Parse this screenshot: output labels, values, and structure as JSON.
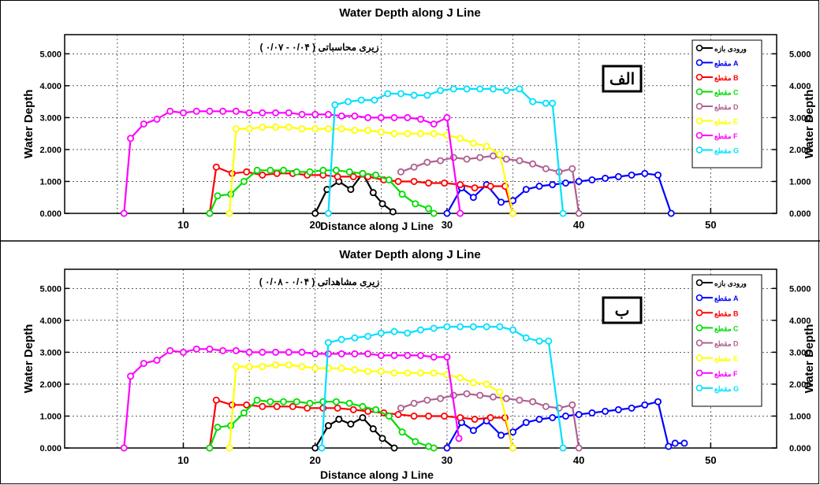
{
  "chart_data": [
    {
      "type": "line",
      "title": "Water Depth along J Line",
      "subtitle": "زیری محاسباتی ( ۰/۰۴ - ۰/۰۷ )",
      "panel_label": "الف",
      "xlabel": "Distance along J Line",
      "ylabel": "Water Depth",
      "ylabel_right": "Water Depth",
      "xlim": [
        1,
        55
      ],
      "ylim": [
        0,
        5.6
      ],
      "xticks": [
        10,
        20,
        30,
        40,
        50
      ],
      "yticks": [
        "0.000",
        "1.000",
        "2.000",
        "3.000",
        "4.000",
        "5.000"
      ],
      "grid": true,
      "legend_position": "top-right",
      "series": [
        {
          "name": "ورودی بازه",
          "color": "#000000",
          "x": [
            20,
            20.9,
            21.8,
            22.7,
            23.6,
            24.4,
            25.1,
            25.9
          ],
          "y": [
            0.0,
            0.75,
            1.0,
            0.75,
            1.25,
            0.65,
            0.3,
            0.05
          ]
        },
        {
          "name": "مقطع A",
          "color": "#0000ff",
          "x": [
            30,
            31.1,
            32.0,
            33.0,
            34.1,
            35.0,
            36.0,
            37.0,
            38.0,
            39.0,
            40.0,
            41.0,
            42.0,
            43.0,
            44.0,
            45.0,
            46.0,
            47.0
          ],
          "y": [
            0.0,
            0.8,
            0.5,
            0.9,
            0.35,
            0.4,
            0.75,
            0.85,
            0.9,
            0.95,
            1.0,
            1.05,
            1.1,
            1.15,
            1.2,
            1.25,
            1.2,
            0.0
          ]
        },
        {
          "name": "مقطع B",
          "color": "#ff0000",
          "x": [
            12,
            12.5,
            13.7,
            14.8,
            16.0,
            17.1,
            18.3,
            19.4,
            20.6,
            21.7,
            22.9,
            24.0,
            25.2,
            26.3,
            27.5,
            28.6,
            29.8,
            31.0,
            32.1,
            33.3,
            34.4,
            35.0
          ],
          "y": [
            0.0,
            1.45,
            1.25,
            1.3,
            1.2,
            1.25,
            1.25,
            1.2,
            1.2,
            1.15,
            1.15,
            1.15,
            1.05,
            1.0,
            1.0,
            0.95,
            0.95,
            0.9,
            0.8,
            0.85,
            0.85,
            0.0
          ]
        },
        {
          "name": "مقطع C",
          "color": "#00dd00",
          "x": [
            12,
            12.6,
            13.6,
            14.6,
            15.6,
            16.6,
            17.6,
            18.6,
            19.6,
            20.6,
            21.6,
            22.6,
            23.6,
            24.6,
            25.6,
            26.6,
            27.6,
            28.6,
            29.0
          ],
          "y": [
            0.0,
            0.55,
            0.6,
            1.0,
            1.35,
            1.35,
            1.35,
            1.3,
            1.3,
            1.35,
            1.35,
            1.3,
            1.25,
            1.2,
            1.05,
            0.6,
            0.3,
            0.15,
            0.0
          ]
        },
        {
          "name": "مقطع D",
          "color": "#b06090",
          "x": [
            26.5,
            27.5,
            28.5,
            29.5,
            30.5,
            31.5,
            32.5,
            33.5,
            34.5,
            35.5,
            36.5,
            37.5,
            38.5,
            39.5,
            40.0
          ],
          "y": [
            1.3,
            1.45,
            1.6,
            1.65,
            1.75,
            1.7,
            1.75,
            1.8,
            1.7,
            1.65,
            1.55,
            1.4,
            1.3,
            1.4,
            0.0
          ]
        },
        {
          "name": "مقطع E",
          "color": "#ffff00",
          "x": [
            13.5,
            14.0,
            15.0,
            16.0,
            17.0,
            18.0,
            19.0,
            20.0,
            21.0,
            22.0,
            23.0,
            24.0,
            25.0,
            26.0,
            27.0,
            28.0,
            29.0,
            30.0,
            31.0,
            32.0,
            33.0,
            34.0,
            35.0
          ],
          "y": [
            0.0,
            2.65,
            2.65,
            2.7,
            2.7,
            2.7,
            2.65,
            2.65,
            2.65,
            2.65,
            2.6,
            2.6,
            2.55,
            2.5,
            2.5,
            2.5,
            2.5,
            2.45,
            2.35,
            2.2,
            2.1,
            1.85,
            0.0
          ]
        },
        {
          "name": "مقطع F",
          "color": "#ff00ff",
          "x": [
            5.5,
            6.0,
            7.0,
            8.0,
            9.0,
            10.0,
            11.0,
            12.0,
            13.0,
            14.0,
            15.0,
            16.0,
            17.0,
            18.0,
            19.0,
            20.0,
            21.0,
            22.0,
            23.0,
            24.0,
            25.0,
            26.0,
            27.0,
            28.0,
            29.0,
            30.0,
            31.0
          ],
          "y": [
            0.0,
            2.35,
            2.8,
            2.95,
            3.2,
            3.15,
            3.2,
            3.2,
            3.2,
            3.2,
            3.15,
            3.15,
            3.15,
            3.15,
            3.1,
            3.1,
            3.1,
            3.05,
            3.05,
            3.0,
            3.0,
            3.0,
            3.0,
            2.95,
            2.8,
            3.0,
            0.0
          ]
        },
        {
          "name": "مقطع G",
          "color": "#00e0ff",
          "x": [
            21.0,
            21.5,
            22.5,
            23.5,
            24.5,
            25.5,
            26.5,
            27.5,
            28.5,
            29.5,
            30.5,
            31.5,
            32.5,
            33.5,
            34.5,
            35.5,
            36.5,
            37.5,
            38.0,
            38.8
          ],
          "y": [
            0.0,
            3.4,
            3.5,
            3.55,
            3.55,
            3.75,
            3.75,
            3.7,
            3.7,
            3.85,
            3.9,
            3.9,
            3.9,
            3.9,
            3.85,
            3.9,
            3.5,
            3.45,
            3.45,
            0.0
          ]
        }
      ]
    },
    {
      "type": "line",
      "title": "Water Depth along J Line",
      "subtitle": "زیری مشاهداتی ( ۰/۰۴ - ۰/۰۸ )",
      "panel_label": "ب",
      "xlabel": "Distance along J Line",
      "ylabel": "Water Depth",
      "ylabel_right": "Water Depth",
      "xlim": [
        1,
        55
      ],
      "ylim": [
        0,
        5.6
      ],
      "xticks": [
        10,
        20,
        30,
        40,
        50
      ],
      "yticks": [
        "0.000",
        "1.000",
        "2.000",
        "3.000",
        "4.000",
        "5.000"
      ],
      "grid": true,
      "legend_position": "top-right",
      "series": [
        {
          "name": "ورودی بازه",
          "color": "#000000",
          "x": [
            20,
            21.0,
            21.8,
            22.7,
            23.6,
            24.4,
            25.1,
            26.0
          ],
          "y": [
            0.0,
            0.7,
            0.9,
            0.75,
            0.95,
            0.6,
            0.3,
            0.0
          ]
        },
        {
          "name": "مقطع A",
          "color": "#0000ff",
          "x": [
            30,
            31.1,
            32.0,
            33.0,
            34.1,
            35.0,
            36.0,
            37.0,
            38.0,
            39.0,
            40.0,
            41.0,
            42.0,
            43.0,
            44.0,
            45.0,
            46.0,
            46.8,
            47.3,
            48.0
          ],
          "y": [
            0.0,
            0.8,
            0.55,
            0.85,
            0.4,
            0.5,
            0.8,
            0.9,
            0.95,
            1.0,
            1.05,
            1.1,
            1.15,
            1.2,
            1.25,
            1.35,
            1.45,
            0.05,
            0.15,
            0.15
          ]
        },
        {
          "name": "مقطع B",
          "color": "#ff0000",
          "x": [
            12,
            12.5,
            13.7,
            14.8,
            16.0,
            17.1,
            18.3,
            19.4,
            20.6,
            21.7,
            22.9,
            24.0,
            25.2,
            26.3,
            27.5,
            28.6,
            29.8,
            31.0,
            32.1,
            33.3,
            34.4,
            35.0
          ],
          "y": [
            0.0,
            1.5,
            1.35,
            1.35,
            1.3,
            1.3,
            1.3,
            1.25,
            1.25,
            1.25,
            1.2,
            1.15,
            1.1,
            1.05,
            1.0,
            1.0,
            1.0,
            0.95,
            0.9,
            0.95,
            0.95,
            0.0
          ]
        },
        {
          "name": "مقطع C",
          "color": "#00dd00",
          "x": [
            12,
            12.6,
            13.6,
            14.6,
            15.6,
            16.6,
            17.6,
            18.6,
            19.6,
            20.6,
            21.6,
            22.6,
            23.6,
            24.6,
            25.6,
            26.6,
            27.6,
            28.6,
            29.0
          ],
          "y": [
            0.0,
            0.65,
            0.7,
            1.1,
            1.5,
            1.45,
            1.45,
            1.45,
            1.4,
            1.45,
            1.45,
            1.4,
            1.3,
            1.2,
            1.0,
            0.5,
            0.2,
            0.05,
            0.0
          ]
        },
        {
          "name": "مقطع D",
          "color": "#b06090",
          "x": [
            26.5,
            27.5,
            28.5,
            29.5,
            30.5,
            31.5,
            32.5,
            33.5,
            34.5,
            35.5,
            36.5,
            37.5,
            38.5,
            39.5,
            40.0
          ],
          "y": [
            1.25,
            1.4,
            1.5,
            1.55,
            1.65,
            1.7,
            1.65,
            1.6,
            1.55,
            1.5,
            1.45,
            1.3,
            1.25,
            1.35,
            0.0
          ]
        },
        {
          "name": "مقطع E",
          "color": "#ffff00",
          "x": [
            13.5,
            14.0,
            15.0,
            16.0,
            17.0,
            18.0,
            19.0,
            20.0,
            21.0,
            22.0,
            23.0,
            24.0,
            25.0,
            26.0,
            27.0,
            28.0,
            29.0,
            30.0,
            31.0,
            32.0,
            33.0,
            34.0,
            35.0
          ],
          "y": [
            0.0,
            2.55,
            2.55,
            2.55,
            2.6,
            2.6,
            2.55,
            2.5,
            2.5,
            2.5,
            2.45,
            2.4,
            2.4,
            2.35,
            2.35,
            2.35,
            2.35,
            2.3,
            2.2,
            2.05,
            2.0,
            1.75,
            0.0
          ]
        },
        {
          "name": "مقطع F",
          "color": "#ff00ff",
          "x": [
            5.5,
            6.0,
            7.0,
            8.0,
            9.0,
            10.0,
            11.0,
            12.0,
            13.0,
            14.0,
            15.0,
            16.0,
            17.0,
            18.0,
            19.0,
            20.0,
            21.0,
            22.0,
            23.0,
            24.0,
            25.0,
            26.0,
            27.0,
            28.0,
            29.0,
            30.0,
            30.9
          ],
          "y": [
            0.0,
            2.25,
            2.65,
            2.75,
            3.05,
            3.0,
            3.1,
            3.1,
            3.05,
            3.05,
            3.0,
            3.0,
            3.0,
            3.0,
            3.0,
            2.95,
            2.95,
            2.95,
            2.95,
            2.95,
            2.9,
            2.9,
            2.9,
            2.9,
            2.85,
            2.85,
            0.3
          ]
        },
        {
          "name": "مقطع G",
          "color": "#00e0ff",
          "x": [
            20.5,
            21.0,
            22.0,
            23.0,
            24.0,
            25.0,
            26.0,
            27.0,
            28.0,
            29.0,
            30.0,
            31.0,
            32.0,
            33.0,
            34.0,
            35.0,
            36.0,
            37.0,
            37.7,
            38.8
          ],
          "y": [
            0.0,
            3.3,
            3.4,
            3.45,
            3.5,
            3.6,
            3.65,
            3.6,
            3.7,
            3.75,
            3.8,
            3.8,
            3.8,
            3.8,
            3.8,
            3.7,
            3.45,
            3.35,
            3.35,
            0.0
          ]
        }
      ]
    }
  ]
}
